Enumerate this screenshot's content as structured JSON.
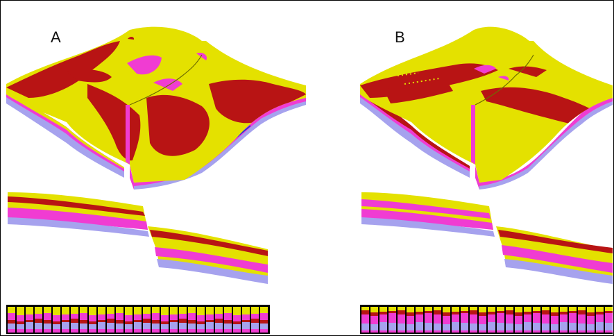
{
  "panels": [
    {
      "label": "A"
    },
    {
      "label": "B"
    }
  ],
  "colors": {
    "yellow": "#e4e100",
    "red": "#b81414",
    "magenta": "#f03cd2",
    "lavender": "#a6a2ee",
    "blue": "#2b3cd0",
    "outline": "#000000"
  }
}
